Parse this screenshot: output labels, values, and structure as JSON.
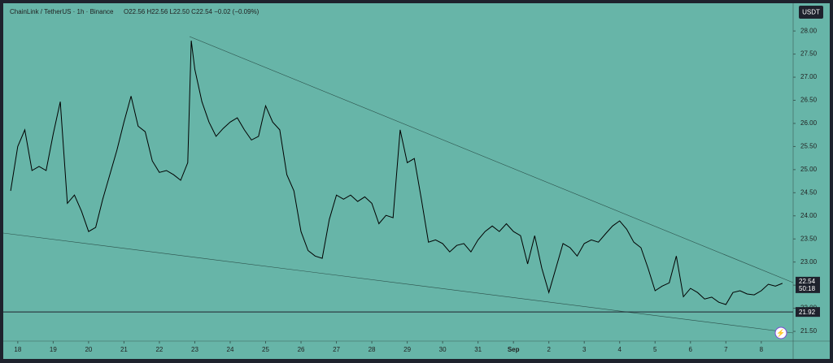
{
  "chart_data": {
    "type": "line",
    "title": "ChainLink / TetherUS · 1h · Binance",
    "ohlc": "O22.56 H22.56 L22.50 C22.54 −0.02 (−0.09%)",
    "currency": "USDT",
    "last_price": 22.54,
    "countdown": "50:18",
    "horizontal_line": 21.92,
    "color": "#000000",
    "background": "#67b5a8",
    "x": [
      -0.2,
      0,
      0.2,
      0.4,
      0.6,
      0.8,
      1,
      1.2,
      1.4,
      1.6,
      1.8,
      2,
      2.2,
      2.4,
      2.6,
      2.8,
      3,
      3.2,
      3.4,
      3.6,
      3.8,
      4,
      4.2,
      4.4,
      4.6,
      4.8,
      4.9,
      5,
      5.2,
      5.4,
      5.6,
      5.8,
      6,
      6.2,
      6.4,
      6.6,
      6.8,
      7,
      7.2,
      7.4,
      7.6,
      7.8,
      8,
      8.2,
      8.4,
      8.6,
      8.8,
      9,
      9.2,
      9.4,
      9.6,
      9.8,
      10,
      10.2,
      10.4,
      10.6,
      10.8,
      11,
      11.2,
      11.4,
      11.6,
      11.8,
      12,
      12.2,
      12.4,
      12.6,
      12.8,
      13,
      13.2,
      13.4,
      13.6,
      13.8,
      14,
      14.2,
      14.4,
      14.6,
      14.8,
      15,
      15.2,
      15.4,
      15.6,
      15.8,
      16,
      16.2,
      16.4,
      16.6,
      16.8,
      17,
      17.2,
      17.4,
      17.6,
      17.8,
      18,
      18.2,
      18.4,
      18.6,
      18.8,
      19,
      19.2,
      19.4,
      19.6,
      19.8,
      20,
      20.2,
      20.4,
      20.6,
      20.8,
      21,
      21.2,
      21.4,
      21.6
    ],
    "values": [
      24.54,
      25.5,
      25.86,
      24.98,
      25.07,
      24.98,
      25.77,
      26.47,
      24.27,
      24.45,
      24.1,
      23.66,
      23.75,
      24.36,
      24.89,
      25.42,
      26.03,
      26.59,
      25.94,
      25.82,
      25.19,
      24.94,
      24.98,
      24.89,
      24.77,
      25.15,
      27.79,
      27.17,
      26.47,
      26.03,
      25.72,
      25.89,
      26.03,
      26.12,
      25.86,
      25.64,
      25.72,
      26.38,
      26.03,
      25.86,
      24.89,
      24.54,
      23.66,
      23.25,
      23.13,
      23.08,
      23.92,
      24.45,
      24.36,
      24.45,
      24.31,
      24.41,
      24.27,
      23.83,
      24.01,
      23.96,
      25.86,
      25.15,
      25.24,
      24.36,
      23.43,
      23.48,
      23.4,
      23.22,
      23.36,
      23.4,
      23.22,
      23.48,
      23.66,
      23.78,
      23.66,
      23.83,
      23.66,
      23.57,
      22.96,
      23.57,
      22.87,
      22.34,
      22.87,
      23.4,
      23.31,
      23.13,
      23.4,
      23.48,
      23.43,
      23.61,
      23.78,
      23.89,
      23.71,
      23.43,
      23.31,
      22.87,
      22.38,
      22.48,
      22.55,
      23.13,
      22.25,
      22.43,
      22.34,
      22.2,
      22.24,
      22.13,
      22.08,
      22.34,
      22.38,
      22.31,
      22.29,
      22.38,
      22.52,
      22.48,
      22.54
    ],
    "xlim": [
      -0.41,
      21.9
    ],
    "xticks": [
      {
        "value": 0,
        "label": "18"
      },
      {
        "value": 1,
        "label": "19"
      },
      {
        "value": 2,
        "label": "20"
      },
      {
        "value": 3,
        "label": "21"
      },
      {
        "value": 4,
        "label": "22"
      },
      {
        "value": 5,
        "label": "23"
      },
      {
        "value": 6,
        "label": "24"
      },
      {
        "value": 7,
        "label": "25"
      },
      {
        "value": 8,
        "label": "26"
      },
      {
        "value": 9,
        "label": "27"
      },
      {
        "value": 10,
        "label": "28"
      },
      {
        "value": 11,
        "label": "29"
      },
      {
        "value": 12,
        "label": "30"
      },
      {
        "value": 13,
        "label": "31"
      },
      {
        "value": 14,
        "label": "Sep"
      },
      {
        "value": 15,
        "label": "2"
      },
      {
        "value": 16,
        "label": "3"
      },
      {
        "value": 17,
        "label": "4"
      },
      {
        "value": 18,
        "label": "5"
      },
      {
        "value": 19,
        "label": "6"
      },
      {
        "value": 20,
        "label": "7"
      },
      {
        "value": 21,
        "label": "8"
      }
    ],
    "ylim": [
      21.29,
      28.6
    ],
    "yticks": [
      {
        "value": 21.5,
        "label": "21.50"
      },
      {
        "value": 22,
        "label": "22.00"
      },
      {
        "value": 22.5,
        "label": "22.50"
      },
      {
        "value": 23,
        "label": "23.00"
      },
      {
        "value": 23.5,
        "label": "23.50"
      },
      {
        "value": 24,
        "label": "24.00"
      },
      {
        "value": 24.5,
        "label": "24.50"
      },
      {
        "value": 25,
        "label": "25.00"
      },
      {
        "value": 25.5,
        "label": "25.50"
      },
      {
        "value": 26,
        "label": "26.00"
      },
      {
        "value": 26.5,
        "label": "26.50"
      },
      {
        "value": 27,
        "label": "27.00"
      },
      {
        "value": 27.5,
        "label": "27.50"
      },
      {
        "value": 28,
        "label": "28.00"
      }
    ]
  }
}
